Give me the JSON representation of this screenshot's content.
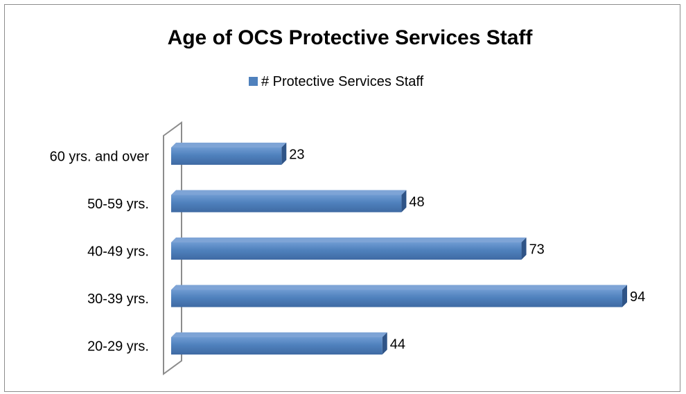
{
  "chart_data": {
    "type": "bar",
    "orientation": "horizontal",
    "title": "Age of OCS Protective Services Staff",
    "categories": [
      "60 yrs. and over",
      "50-59 yrs.",
      "40-49 yrs.",
      "30-39 yrs.",
      "20-29 yrs."
    ],
    "series": [
      {
        "name": "# Protective Services Staff",
        "values": [
          23,
          48,
          73,
          94,
          44
        ],
        "color": "#4f81bd"
      }
    ],
    "xlim": [
      0,
      94
    ],
    "legend_position": "top",
    "grid": false,
    "data_labels": true,
    "style": "3d"
  }
}
